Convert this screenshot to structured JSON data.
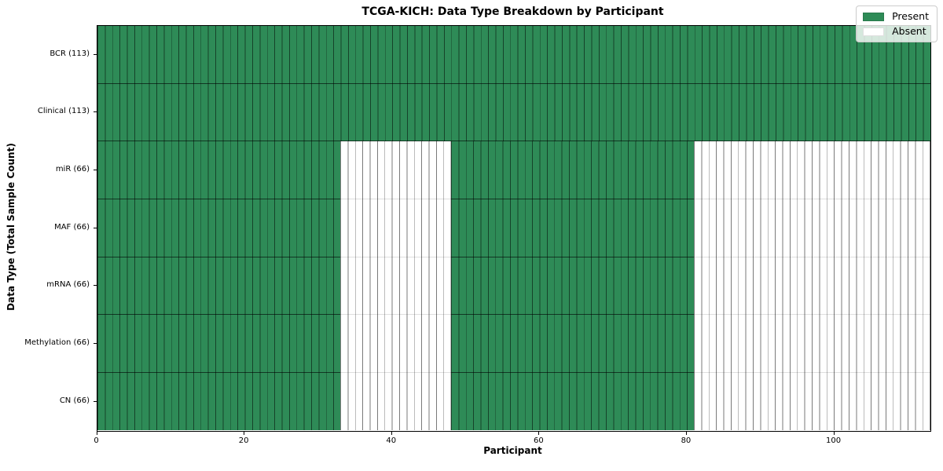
{
  "title": "TCGA-KICH: Data Type Breakdown by Participant",
  "xlabel": "Participant",
  "ylabel": "Data Type (Total Sample Count)",
  "legend": {
    "items": [
      {
        "label": "Present",
        "color": "#2e8b57"
      },
      {
        "label": "Absent",
        "color": "#ffffff"
      }
    ]
  },
  "chart_data": {
    "type": "heatmap",
    "title": "TCGA-KICH: Data Type Breakdown by Participant",
    "xlabel": "Participant",
    "ylabel": "Data Type (Total Sample Count)",
    "n_participants": 113,
    "x_range": [
      0,
      113
    ],
    "xticks": [
      "0",
      "20",
      "40",
      "60",
      "80",
      "100"
    ],
    "xtick_values": [
      0,
      20,
      40,
      60,
      80,
      100
    ],
    "legend_position": "upper-right",
    "colors": {
      "present": "#2e8b57",
      "absent": "#ffffff"
    },
    "states": [
      "Present",
      "Absent"
    ],
    "rows": [
      {
        "label": "BCR (113)",
        "total_samples": 113,
        "present_runs": [
          [
            0,
            113
          ]
        ]
      },
      {
        "label": "Clinical (113)",
        "total_samples": 113,
        "present_runs": [
          [
            0,
            113
          ]
        ]
      },
      {
        "label": "miR (66)",
        "total_samples": 66,
        "present_runs": [
          [
            0,
            33
          ],
          [
            48,
            81
          ]
        ]
      },
      {
        "label": "MAF (66)",
        "total_samples": 66,
        "present_runs": [
          [
            0,
            33
          ],
          [
            48,
            81
          ]
        ]
      },
      {
        "label": "mRNA (66)",
        "total_samples": 66,
        "present_runs": [
          [
            0,
            33
          ],
          [
            48,
            81
          ]
        ]
      },
      {
        "label": "Methylation (66)",
        "total_samples": 66,
        "present_runs": [
          [
            0,
            33
          ],
          [
            48,
            81
          ]
        ]
      },
      {
        "label": "CN (66)",
        "total_samples": 66,
        "present_runs": [
          [
            0,
            33
          ],
          [
            48,
            81
          ]
        ]
      }
    ]
  }
}
